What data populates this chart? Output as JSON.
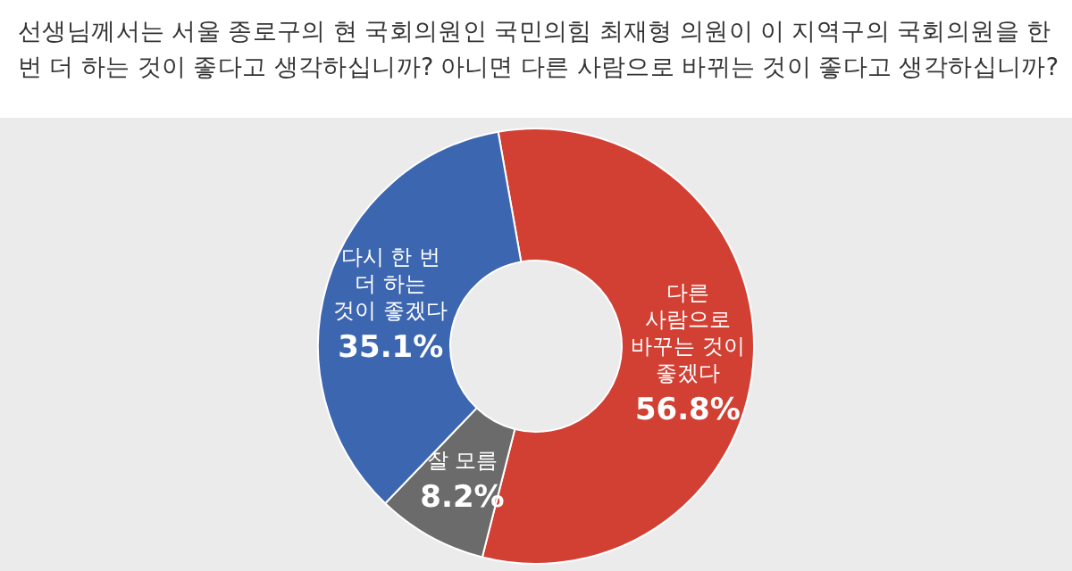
{
  "chart_data": {
    "type": "donut",
    "title": "선생님께서는 서울 종로구의 현 국회의원인 국민의힘 최재형 의원이 이 지역구의 국회의원을 한번 더 하는 것이 좋다고 생각하십니까? 아니면 다른 사람으로 바뀌는 것이 좋다고 생각하십니까?",
    "categories": [
      "다른 사람으로 바꾸는 것이 좋겠다",
      "잘 모름",
      "다시 한 번 더 하는 것이 좋겠다"
    ],
    "values": [
      56.8,
      8.2,
      35.1
    ],
    "colors": [
      "#d23f33",
      "#6b6b6b",
      "#3c66b0"
    ],
    "value_labels": [
      "56.8%",
      "8.2%",
      "35.1%"
    ]
  }
}
